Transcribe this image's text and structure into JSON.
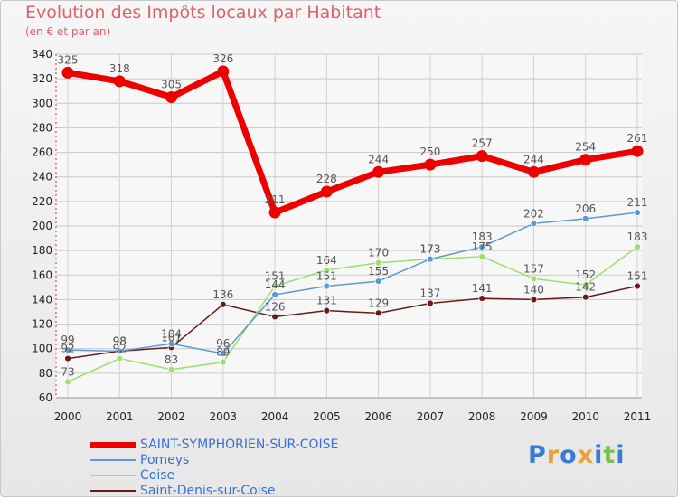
{
  "chart_data": {
    "type": "line",
    "title": "Evolution des Impôts locaux par Habitant",
    "subtitle": "(en € et par an)",
    "x": [
      "2000",
      "2001",
      "2002",
      "2003",
      "2004",
      "2005",
      "2006",
      "2007",
      "2008",
      "2009",
      "2010",
      "2011"
    ],
    "ylim": [
      60,
      340
    ],
    "yticks": [
      60,
      80,
      100,
      120,
      140,
      160,
      180,
      200,
      220,
      240,
      260,
      280,
      300,
      320,
      340
    ],
    "series": [
      {
        "name": "SAINT-SYMPHORIEN-SUR-COISE",
        "color": "#ee0000",
        "values": [
          325,
          318,
          305,
          326,
          211,
          228,
          244,
          250,
          257,
          244,
          254,
          261
        ]
      },
      {
        "name": "Pomeys",
        "color": "#5b9bd5",
        "values": [
          99,
          98,
          104,
          96,
          144,
          151,
          155,
          173,
          183,
          202,
          206,
          211
        ]
      },
      {
        "name": "Coise",
        "color": "#9ae06a",
        "values": [
          73,
          92,
          83,
          89,
          151,
          164,
          170,
          173,
          175,
          157,
          152,
          183
        ]
      },
      {
        "name": "Saint-Denis-sur-Coise",
        "color": "#6b1a1a",
        "values": [
          92,
          98,
          101,
          136,
          126,
          131,
          129,
          137,
          141,
          140,
          142,
          151
        ]
      }
    ],
    "data_labels": [
      [
        "325",
        "318",
        "305",
        "326",
        "211",
        "228",
        "244",
        "250",
        "257",
        "244",
        "254",
        "261"
      ],
      [
        "99",
        "98",
        "104",
        "96",
        "144",
        "151",
        "155",
        "173",
        "183",
        "202",
        "206",
        "211"
      ],
      [
        "73",
        "92",
        "83",
        "89",
        "151",
        "164",
        "170",
        "173",
        "175",
        "157",
        "152",
        "183"
      ],
      [
        "92",
        "98",
        "101",
        "136",
        "126",
        "131",
        "129",
        "137",
        "141",
        "140",
        "142",
        "151"
      ]
    ]
  },
  "logo": {
    "text": "Proxiti",
    "colors": [
      "#3a7bd5",
      "#e8a23a",
      "#3a7bd5",
      "#e8a23a",
      "#3a7bd5",
      "#7cc04a",
      "#3a7bd5"
    ]
  }
}
